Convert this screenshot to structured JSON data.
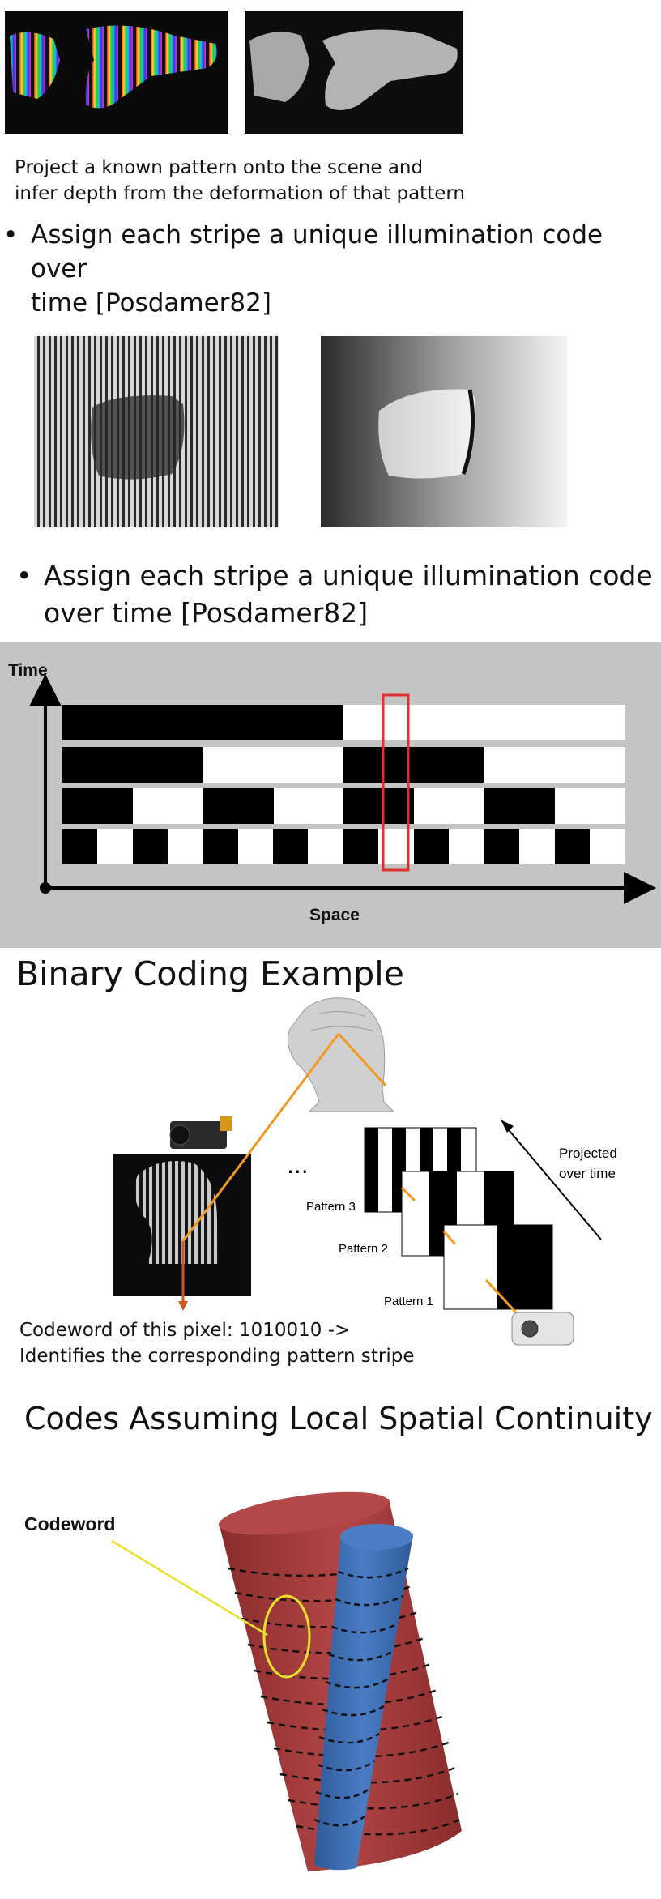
{
  "section1": {
    "caption_line1": "Project a known pattern onto the scene and",
    "caption_line2": "infer depth from the deformation of that pattern",
    "bullet_line1": "Assign each stripe a unique illumination code over",
    "bullet_line2": "time [Posdamer82]"
  },
  "section2": {
    "bullet_line1": "Assign each stripe a unique illumination code",
    "bullet_line2": "over time [Posdamer82]"
  },
  "timeline": {
    "time_label": "Time",
    "space_label": "Space",
    "background": "#c4c4c4",
    "highlight_color": "#e03030"
  },
  "binary": {
    "title": "Binary Coding Example",
    "dots": "...",
    "projected_line1": "Projected",
    "projected_line2": "over time",
    "pattern3": "Pattern 3",
    "pattern2": "Pattern 2",
    "pattern1": "Pattern 1",
    "codeword_line1": "Codeword of this pixel: 1010010 ->",
    "codeword_line2": "Identifies the corresponding pattern stripe",
    "ray_color": "#f39a1e"
  },
  "spatial": {
    "title": "Codes Assuming Local Spatial Continuity",
    "codeword_label": "Codeword",
    "red_color": "#a43a3a",
    "blue_color": "#3d6bb0",
    "marker_color": "#e8e02a"
  }
}
